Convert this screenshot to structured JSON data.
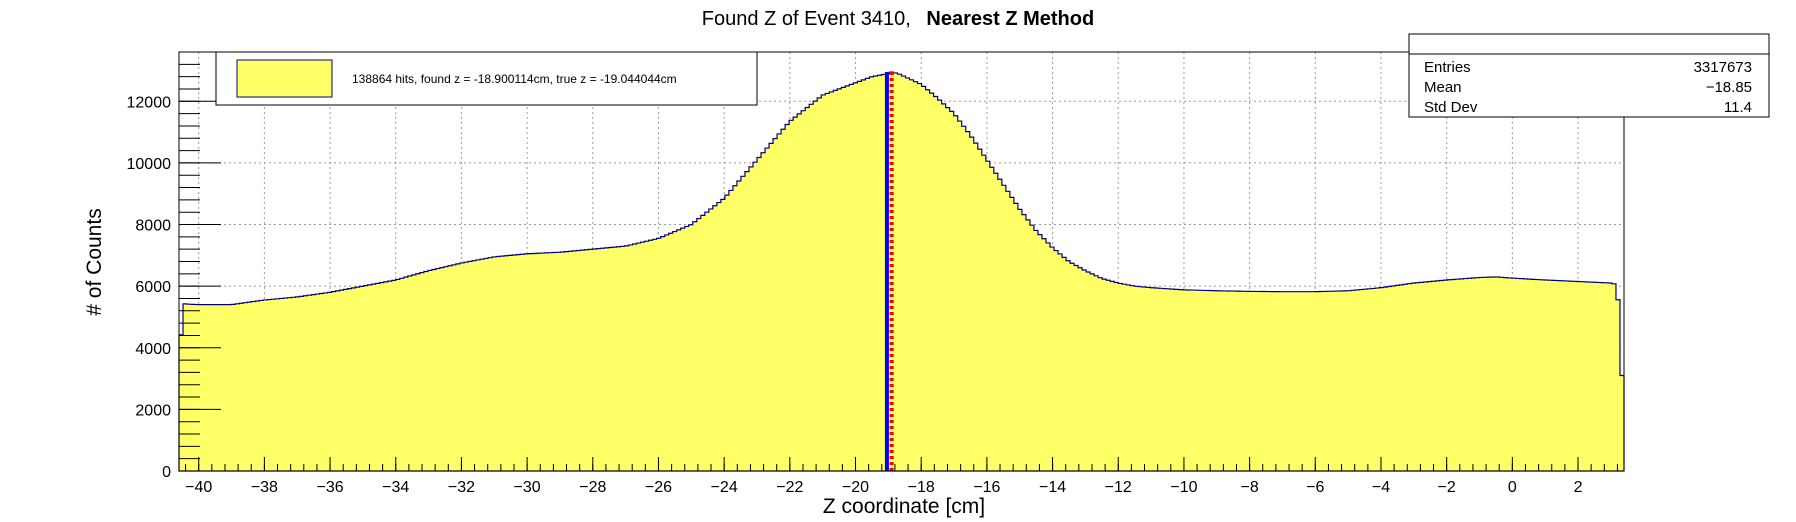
{
  "chart_data": {
    "type": "area",
    "title": "Found Z of Event 3410,",
    "title_bold": "Nearest Z Method",
    "xlabel": "Z coordinate [cm]",
    "ylabel": "# of Counts",
    "xlim": [
      -40.6,
      3.4
    ],
    "ylim": [
      0,
      13600
    ],
    "grid": true,
    "x_ticks": [
      -40,
      -38,
      -36,
      -34,
      -32,
      -30,
      -28,
      -26,
      -24,
      -22,
      -20,
      -18,
      -16,
      -14,
      -12,
      -10,
      -8,
      -6,
      -4,
      -2,
      0,
      2
    ],
    "y_ticks": [
      0,
      2000,
      4000,
      6000,
      8000,
      10000,
      12000
    ],
    "x_tick_labels": [
      "−40",
      "−38",
      "−36",
      "−34",
      "−32",
      "−30",
      "−28",
      "−26",
      "−24",
      "−22",
      "−20",
      "−18",
      "−16",
      "−14",
      "−12",
      "−10",
      "−8",
      "−6",
      "−4",
      "−2",
      "0",
      "2"
    ],
    "y_tick_labels": [
      "0",
      "2000",
      "4000",
      "6000",
      "8000",
      "10000",
      "12000"
    ],
    "series": [
      {
        "name": "138864 hits, found z = -18.900114cm, true z = -19.044044cm",
        "color": "#ffff66",
        "line_color": "#000080",
        "x": [
          -40.6,
          -40.5,
          -40.4,
          -40.0,
          -39.0,
          -38.0,
          -37.0,
          -36.0,
          -35.0,
          -34.0,
          -33.0,
          -32.0,
          -31.0,
          -30.0,
          -29.0,
          -28.0,
          -27.0,
          -26.0,
          -25.0,
          -24.0,
          -23.0,
          -22.0,
          -21.0,
          -20.0,
          -19.5,
          -19.0,
          -18.9,
          -18.7,
          -18.5,
          -18.0,
          -17.5,
          -17.0,
          -16.5,
          -16.0,
          -15.5,
          -15.0,
          -14.5,
          -14.0,
          -13.5,
          -13.0,
          -12.5,
          -12.0,
          -11.5,
          -11.0,
          -10.0,
          -9.0,
          -8.0,
          -7.0,
          -6.0,
          -5.0,
          -4.0,
          -3.0,
          -2.0,
          -1.0,
          -0.5,
          0.0,
          1.0,
          2.0,
          3.0,
          3.2,
          3.3
        ],
        "values": [
          2800,
          5450,
          5420,
          5400,
          5400,
          5550,
          5650,
          5800,
          6000,
          6200,
          6500,
          6750,
          6950,
          7050,
          7100,
          7200,
          7300,
          7550,
          8000,
          8850,
          10100,
          11350,
          12200,
          12600,
          12800,
          12900,
          12950,
          12900,
          12800,
          12550,
          12100,
          11600,
          10900,
          10100,
          9300,
          8500,
          7800,
          7250,
          6800,
          6500,
          6250,
          6100,
          6000,
          5950,
          5880,
          5850,
          5830,
          5820,
          5820,
          5850,
          5950,
          6100,
          6200,
          6280,
          6300,
          6260,
          6200,
          6150,
          6100,
          6050,
          3100
        ]
      }
    ],
    "lines": [
      {
        "x": -19.044044,
        "color": "#0000ff",
        "style": "solid"
      },
      {
        "x": -18.900114,
        "color": "#ff0000",
        "style": "dotted"
      }
    ],
    "stats": {
      "rows": [
        {
          "label": "Entries",
          "value": "3317673"
        },
        {
          "label": "Mean",
          "value": "−18.85"
        },
        {
          "label": "Std Dev",
          "value": "11.4"
        }
      ]
    },
    "legend_position": "top-left"
  }
}
